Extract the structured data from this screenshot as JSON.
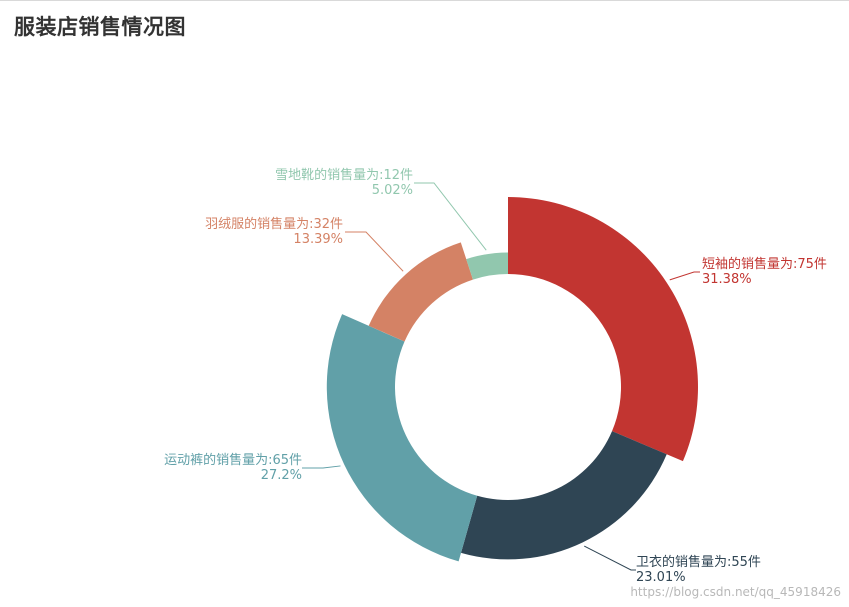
{
  "title": "服装店销售情况图",
  "watermark": "https://blog.csdn.net/qq_45918426",
  "chart_data": {
    "type": "pie",
    "variant": "rose-ring",
    "title": "服装店销售情况图",
    "legend": "none",
    "slices": [
      {
        "name": "短袖",
        "value": 75,
        "percent": "31.38%",
        "label": "短袖的销售量为:75件",
        "color": "#c23531"
      },
      {
        "name": "卫衣",
        "value": 55,
        "percent": "23.01%",
        "label": "卫衣的销售量为:55件",
        "color": "#2f4554"
      },
      {
        "name": "运动裤",
        "value": 65,
        "percent": "27.2%",
        "label": "运动裤的销售量为:65件",
        "color": "#61a0a8"
      },
      {
        "name": "羽绒服",
        "value": 32,
        "percent": "13.39%",
        "label": "羽绒服的销售量为:32件",
        "color": "#d48265"
      },
      {
        "name": "雪地靴",
        "value": 12,
        "percent": "5.02%",
        "label": "雪地靴的销售量为:12件",
        "color": "#91c7ae"
      }
    ]
  }
}
